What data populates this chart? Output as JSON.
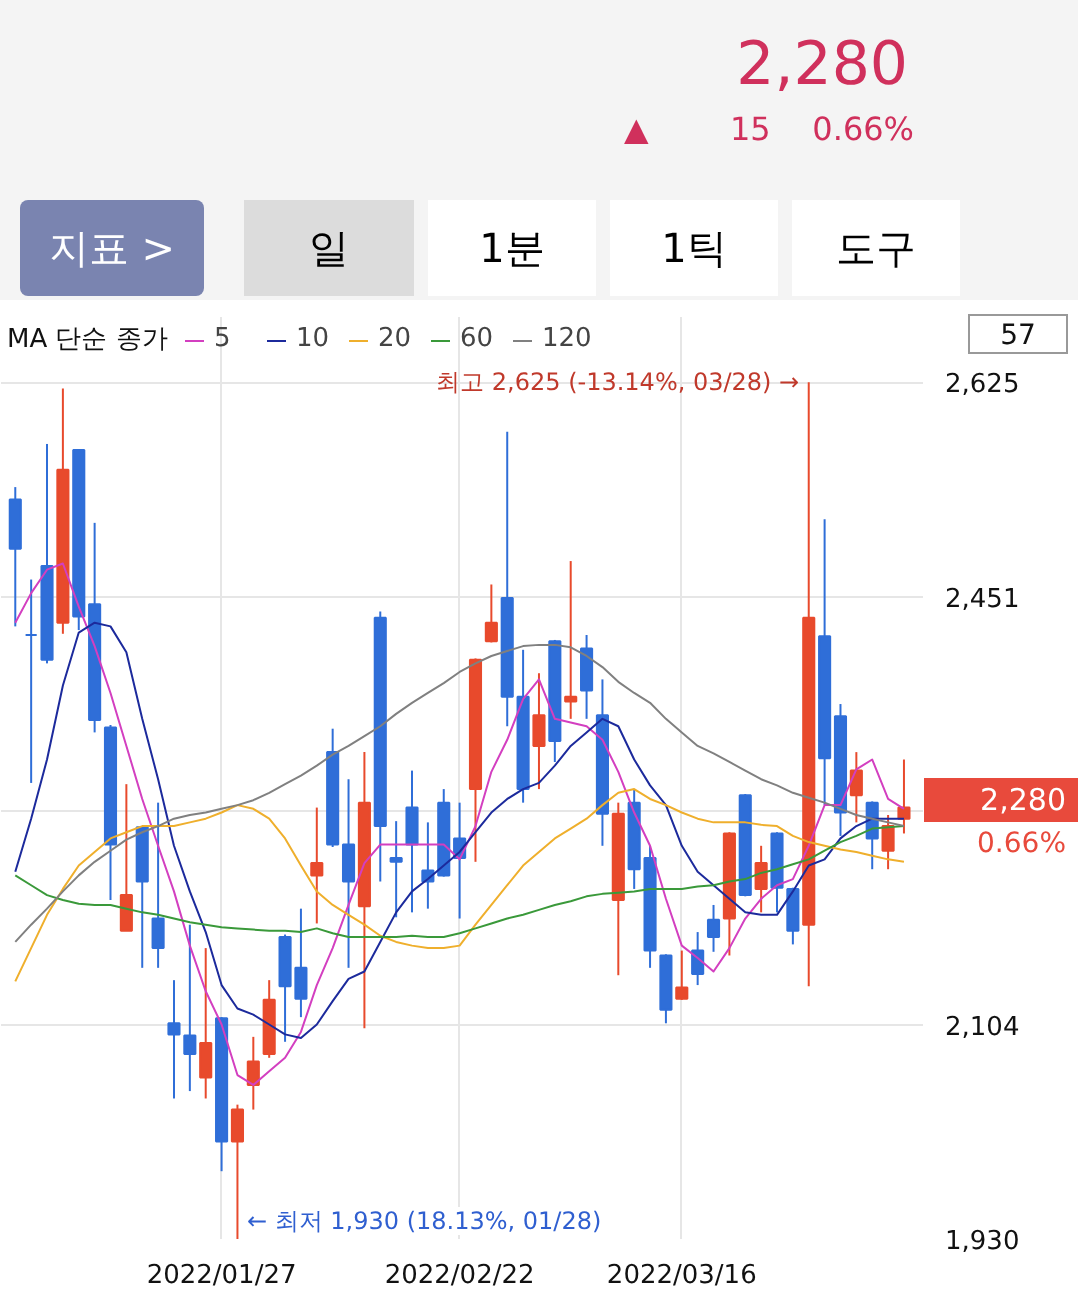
{
  "chart_data": {
    "type": "candlestick",
    "categories": [
      null,
      null,
      null,
      null,
      null,
      null,
      null,
      null,
      null,
      null,
      null,
      null,
      null,
      "2022/01/27",
      null,
      null,
      null,
      null,
      null,
      null,
      null,
      null,
      null,
      null,
      null,
      null,
      null,
      null,
      "2022/02/22",
      null,
      null,
      null,
      null,
      null,
      null,
      null,
      null,
      null,
      null,
      null,
      null,
      null,
      "2022/03/16",
      null,
      null,
      null,
      null,
      null,
      null,
      null,
      null,
      null,
      null,
      null,
      null,
      null,
      null
    ],
    "ohlc": [
      [
        2530,
        2540,
        2427,
        2490
      ],
      [
        2420,
        2465,
        2300,
        2420
      ],
      [
        2476,
        2575,
        2397,
        2400
      ],
      [
        2430,
        2620,
        2421,
        2554
      ],
      [
        2570,
        2570,
        2424,
        2435
      ],
      [
        2445,
        2511,
        2341,
        2351
      ],
      [
        2345,
        2347,
        2205,
        2250
      ],
      [
        2180,
        2299,
        2180,
        2209
      ],
      [
        2264,
        2265,
        2150,
        2220
      ],
      [
        2190,
        2284,
        2150,
        2166
      ],
      [
        2105,
        2140,
        2044,
        2096
      ],
      [
        2095,
        2185,
        2050,
        2080
      ],
      [
        2061,
        2166,
        2044,
        2089
      ],
      [
        2109,
        2110,
        1985,
        2009
      ],
      [
        2009,
        2039,
        1930,
        2035
      ],
      [
        2055,
        2094,
        2035,
        2074
      ],
      [
        2080,
        2140,
        2077,
        2124
      ],
      [
        2175,
        2177,
        2090,
        2135
      ],
      [
        2150,
        2198,
        2110,
        2125
      ],
      [
        2225,
        2280,
        2186,
        2235
      ],
      [
        2325,
        2344,
        2248,
        2250
      ],
      [
        2250,
        2303,
        2150,
        2220
      ],
      [
        2200,
        2325,
        2101,
        2284
      ],
      [
        2434,
        2439,
        2220,
        2265
      ],
      [
        2239,
        2269,
        2191,
        2236
      ],
      [
        2280,
        2310,
        2195,
        2250
      ],
      [
        2229,
        2268,
        2198,
        2220
      ],
      [
        2284,
        2295,
        2224,
        2225
      ],
      [
        2255,
        2284,
        2190,
        2239
      ],
      [
        2295,
        2401,
        2236,
        2400
      ],
      [
        2415,
        2461,
        2414,
        2430
      ],
      [
        2450,
        2585,
        2346,
        2370
      ],
      [
        2370,
        2408,
        2284,
        2295
      ],
      [
        2330,
        2389,
        2295,
        2355
      ],
      [
        2415,
        2416,
        2317,
        2334
      ],
      [
        2366,
        2480,
        2352,
        2370
      ],
      [
        2409,
        2420,
        2352,
        2375
      ],
      [
        2355,
        2384,
        2249,
        2275
      ],
      [
        2205,
        2284,
        2144,
        2275
      ],
      [
        2284,
        2295,
        2214,
        2230
      ],
      [
        2239,
        2249,
        2150,
        2164
      ],
      [
        2160,
        2161,
        2105,
        2116
      ],
      [
        2125,
        2164,
        2124,
        2134
      ],
      [
        2164,
        2179,
        2136,
        2145
      ],
      [
        2189,
        2201,
        2163,
        2175
      ],
      [
        2190,
        2260,
        2160,
        2259
      ],
      [
        2290,
        2291,
        2208,
        2209
      ],
      [
        2214,
        2249,
        2195,
        2235
      ],
      [
        2259,
        2260,
        2195,
        2215
      ],
      [
        2214,
        2215,
        2169,
        2180
      ],
      [
        2185,
        2625,
        2135,
        2434
      ],
      [
        2419,
        2514,
        2282,
        2320
      ],
      [
        2354,
        2364,
        2257,
        2276
      ],
      [
        2290,
        2325,
        2268,
        2310
      ],
      [
        2284,
        2285,
        2230,
        2255
      ],
      [
        2245,
        2274,
        2230,
        2265
      ],
      [
        2271,
        2319,
        2259,
        2280
      ]
    ],
    "colors": [
      "#2f6ed8",
      "#2f6ed8",
      "#2f6ed8",
      "#e84a2c",
      "#2f6ed8",
      "#2f6ed8",
      "#2f6ed8",
      "#e84a2c",
      "#2f6ed8",
      "#2f6ed8",
      "#2f6ed8",
      "#2f6ed8",
      "#e84a2c",
      "#2f6ed8",
      "#e84a2c",
      "#e84a2c",
      "#e84a2c",
      "#2f6ed8",
      "#2f6ed8",
      "#e84a2c",
      "#2f6ed8",
      "#2f6ed8",
      "#e84a2c",
      "#2f6ed8",
      "#2f6ed8",
      "#2f6ed8",
      "#2f6ed8",
      "#2f6ed8",
      "#2f6ed8",
      "#e84a2c",
      "#e84a2c",
      "#2f6ed8",
      "#2f6ed8",
      "#e84a2c",
      "#2f6ed8",
      "#e84a2c",
      "#2f6ed8",
      "#2f6ed8",
      "#e84a2c",
      "#2f6ed8",
      "#2f6ed8",
      "#2f6ed8",
      "#e84a2c",
      "#2f6ed8",
      "#2f6ed8",
      "#e84a2c",
      "#2f6ed8",
      "#e84a2c",
      "#2f6ed8",
      "#2f6ed8",
      "#e84a2c",
      "#2f6ed8",
      "#2f6ed8",
      "#e84a2c",
      "#2f6ed8",
      "#e84a2c",
      "#e84a2c"
    ],
    "series": [
      {
        "type": "line",
        "name": "5",
        "color": "#d33fc0",
        "values": [
          2430,
          2454,
          2473,
          2478,
          2443,
          2411,
          2373,
          2330,
          2287,
          2249,
          2212,
          2168,
          2131,
          2104,
          2063,
          2055,
          2066,
          2077,
          2098,
          2136,
          2166,
          2201,
          2235,
          2250,
          2250,
          2250,
          2250,
          2250,
          2238,
          2265,
          2309,
          2335,
          2368,
          2384,
          2352,
          2349,
          2346,
          2335,
          2309,
          2276,
          2249,
          2206,
          2168,
          2158,
          2147,
          2166,
          2190,
          2206,
          2217,
          2222,
          2249,
          2282,
          2282,
          2311,
          2319,
          2287,
          2279
        ]
      },
      {
        "type": "line",
        "name": "10",
        "color": "#1c2a9c",
        "values": [
          2228,
          2271,
          2319,
          2379,
          2422,
          2430,
          2427,
          2406,
          2352,
          2303,
          2249,
          2212,
          2179,
          2136,
          2117,
          2112,
          2104,
          2096,
          2093,
          2104,
          2123,
          2141,
          2147,
          2171,
          2195,
          2212,
          2222,
          2233,
          2244,
          2260,
          2276,
          2287,
          2295,
          2300,
          2314,
          2330,
          2341,
          2352,
          2346,
          2319,
          2298,
          2282,
          2249,
          2228,
          2217,
          2206,
          2195,
          2193,
          2193,
          2212,
          2233,
          2238,
          2255,
          2265,
          2271,
          2271,
          2271
        ]
      },
      {
        "type": "line",
        "name": "20",
        "color": "#efaf2c",
        "values": [
          2139,
          2166,
          2193,
          2214,
          2233,
          2244,
          2255,
          2260,
          2265,
          2265,
          2265,
          2268,
          2271,
          2276,
          2282,
          2279,
          2271,
          2255,
          2233,
          2212,
          2201,
          2193,
          2185,
          2176,
          2171,
          2168,
          2166,
          2166,
          2168,
          2185,
          2201,
          2217,
          2233,
          2244,
          2255,
          2263,
          2271,
          2282,
          2292,
          2295,
          2287,
          2282,
          2276,
          2271,
          2268,
          2268,
          2268,
          2266,
          2265,
          2257,
          2252,
          2249,
          2246,
          2244,
          2241,
          2238,
          2236
        ]
      },
      {
        "type": "line",
        "name": "60",
        "color": "#3a993a",
        "values": [
          2225,
          2217,
          2209,
          2205,
          2202,
          2201,
          2201,
          2198,
          2195,
          2193,
          2190,
          2187,
          2185,
          2183,
          2182,
          2181,
          2180,
          2180,
          2179,
          2182,
          2178,
          2175,
          2175,
          2175,
          2175,
          2176,
          2175,
          2175,
          2178,
          2182,
          2186,
          2190,
          2193,
          2197,
          2201,
          2204,
          2208,
          2210,
          2211,
          2212,
          2214,
          2214,
          2214,
          2216,
          2217,
          2220,
          2222,
          2227,
          2230,
          2234,
          2238,
          2245,
          2252,
          2257,
          2263,
          2264,
          2265
        ]
      },
      {
        "type": "line",
        "name": "120",
        "color": "#808080",
        "values": [
          2171,
          2185,
          2198,
          2212,
          2225,
          2236,
          2245,
          2254,
          2260,
          2265,
          2271,
          2274,
          2276,
          2279,
          2282,
          2286,
          2292,
          2299,
          2306,
          2314,
          2323,
          2330,
          2338,
          2346,
          2356,
          2365,
          2373,
          2381,
          2390,
          2397,
          2403,
          2407,
          2411,
          2412,
          2412,
          2410,
          2403,
          2394,
          2382,
          2373,
          2365,
          2352,
          2341,
          2330,
          2324,
          2317,
          2310,
          2303,
          2298,
          2292,
          2288,
          2284,
          2279,
          2274,
          2271,
          2268,
          2265
        ]
      }
    ],
    "legend_title": "MA 단순 종가",
    "legend": "top left",
    "ylim": [
      1930,
      2678
    ],
    "yticks": [
      {
        "value": 2625,
        "label": "2,625"
      },
      {
        "value": 2451,
        "label": "2,451"
      },
      {
        "value": 2278,
        "label": null
      },
      {
        "value": 2104,
        "label": "2,104"
      },
      {
        "value": 1930,
        "label": "1,930"
      }
    ],
    "grid": true,
    "annotations": [
      "2,280",
      "▲",
      "15",
      "0.66%",
      "지표 >",
      "일",
      "1분",
      "1틱",
      "도구",
      "57",
      "최고 2,625 (-13.14%, 03/28) →",
      "← 최저 1,930 (18.13%, 01/28)",
      "2,280",
      "0.66%"
    ]
  }
}
